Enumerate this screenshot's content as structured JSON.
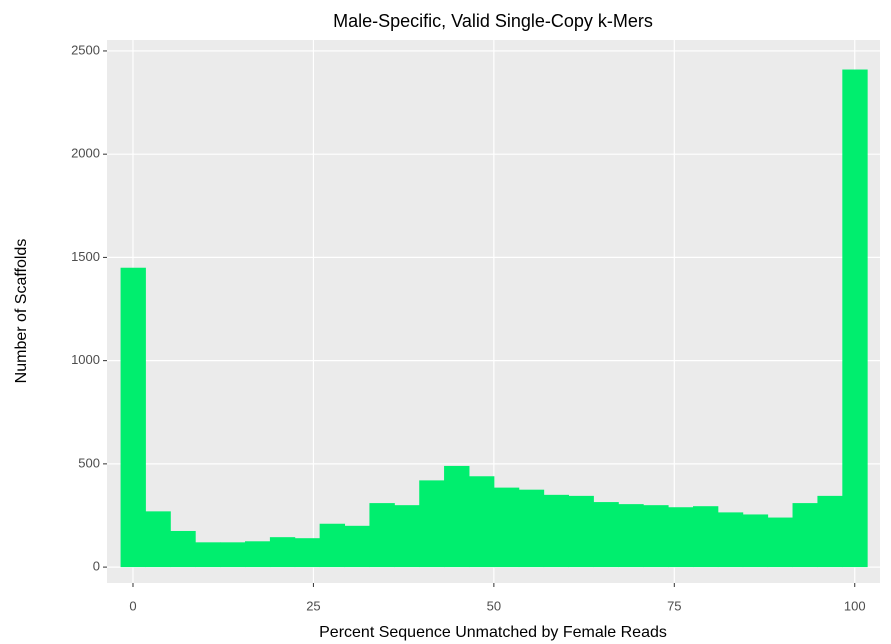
{
  "chart_data": {
    "type": "histogram",
    "title": "Male-Specific, Valid Single-Copy k-Mers",
    "x_label": "Percent Sequence Unmatched by Female Reads",
    "y_label": "Number of Scaffolds",
    "bins": [
      -1.72,
      1.72,
      5.17,
      8.62,
      12.07,
      15.52,
      18.97,
      22.41,
      25.86,
      29.31,
      32.76,
      36.21,
      39.66,
      43.1,
      46.55,
      50.0,
      53.45,
      56.9,
      60.34,
      63.79,
      67.24,
      70.69,
      74.14,
      77.59,
      81.03,
      84.48,
      87.93,
      91.38,
      94.83,
      98.28,
      101.72
    ],
    "values": [
      1450,
      270,
      175,
      120,
      120,
      125,
      145,
      140,
      210,
      200,
      310,
      300,
      420,
      490,
      440,
      385,
      375,
      350,
      345,
      315,
      305,
      300,
      290,
      295,
      265,
      255,
      240,
      310,
      345,
      2410
    ],
    "color": "#00ee6e",
    "xlim": [
      -3.6,
      103.5
    ],
    "xticks": [
      0,
      25,
      50,
      75,
      100
    ],
    "ylim": [
      -77,
      2553
    ],
    "yticks": [
      0,
      500,
      1000,
      1500,
      2000,
      2500
    ],
    "grid": true
  }
}
